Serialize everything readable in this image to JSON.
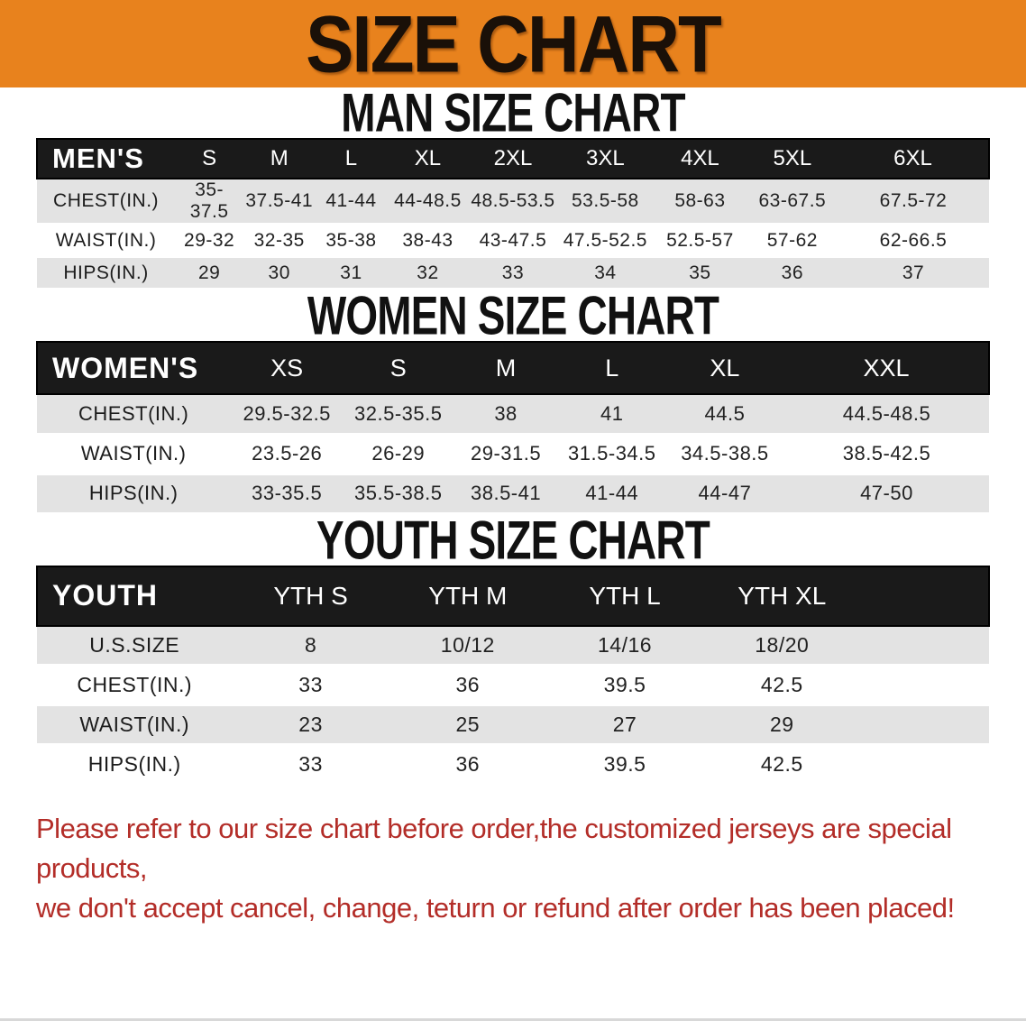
{
  "banner": {
    "title": "SIZE CHART",
    "bg_color": "#E8821D",
    "text_color": "#1A1008"
  },
  "sections": [
    {
      "heading": "MAN SIZE CHART",
      "label": "MEN'S",
      "columns": [
        "S",
        "M",
        "L",
        "XL",
        "2XL",
        "3XL",
        "4XL",
        "5XL",
        "6XL"
      ],
      "rows": [
        {
          "label": "CHEST(IN.)",
          "values": [
            "35-37.5",
            "37.5-41",
            "41-44",
            "44-48.5",
            "48.5-53.5",
            "53.5-58",
            "58-63",
            "63-67.5",
            "67.5-72"
          ]
        },
        {
          "label": "WAIST(IN.)",
          "values": [
            "29-32",
            "32-35",
            "35-38",
            "38-43",
            "43-47.5",
            "47.5-52.5",
            "52.5-57",
            "57-62",
            "62-66.5"
          ]
        },
        {
          "label": "HIPS(IN.)",
          "values": [
            "29",
            "30",
            "31",
            "32",
            "33",
            "34",
            "35",
            "36",
            "37"
          ]
        }
      ],
      "spacer": false
    },
    {
      "heading": "WOMEN SIZE CHART",
      "label": "WOMEN'S",
      "columns": [
        "XS",
        "S",
        "M",
        "L",
        "XL",
        "XXL"
      ],
      "rows": [
        {
          "label": "CHEST(IN.)",
          "values": [
            "29.5-32.5",
            "32.5-35.5",
            "38",
            "41",
            "44.5",
            "44.5-48.5"
          ]
        },
        {
          "label": "WAIST(IN.)",
          "values": [
            "23.5-26",
            "26-29",
            "29-31.5",
            "31.5-34.5",
            "34.5-38.5",
            "38.5-42.5"
          ]
        },
        {
          "label": "HIPS(IN.)",
          "values": [
            "33-35.5",
            "35.5-38.5",
            "38.5-41",
            "41-44",
            "44-47",
            "47-50"
          ]
        }
      ],
      "spacer": false
    },
    {
      "heading": "YOUTH SIZE CHART",
      "label": "YOUTH",
      "columns": [
        "YTH S",
        "YTH M",
        "YTH L",
        "YTH XL"
      ],
      "rows": [
        {
          "label": "U.S.SIZE",
          "values": [
            "8",
            "10/12",
            "14/16",
            "18/20"
          ]
        },
        {
          "label": "CHEST(IN.)",
          "values": [
            "33",
            "36",
            "39.5",
            "42.5"
          ]
        },
        {
          "label": "WAIST(IN.)",
          "values": [
            "23",
            "25",
            "27",
            "29"
          ]
        },
        {
          "label": "HIPS(IN.)",
          "values": [
            "33",
            "36",
            "39.5",
            "42.5"
          ]
        }
      ],
      "spacer": true
    }
  ],
  "table_colors": {
    "header_bg": "#1A1A1A",
    "header_text": "#FFFFFF",
    "stripe_row_bg": "#E3E3E3",
    "plain_row_bg": "#FFFFFF"
  },
  "disclaimer": {
    "line1": "Please refer to our size chart before order,the customized jerseys are special products,",
    "line2": "we don't accept cancel, change, teturn or refund after order has been placed!",
    "color": "#B32D28"
  }
}
